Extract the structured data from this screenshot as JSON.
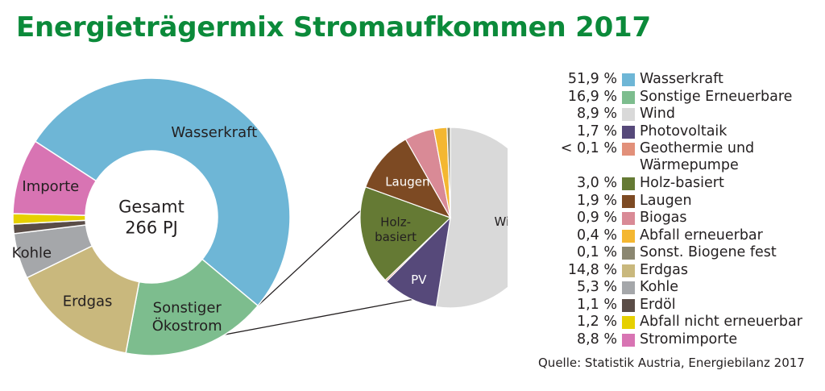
{
  "title": "Energieträgermix Stromaufkommen 2017",
  "source": "Quelle: Statistik Austria, Energiebilanz 2017",
  "chart_data": [
    {
      "type": "pie",
      "subtype": "donut",
      "center_label": [
        "Gesamt",
        "266 PJ"
      ],
      "segments": [
        {
          "name": "Wasserkraft",
          "label": "Wasserkraft",
          "value": 51.9,
          "color": "#6eb6d6"
        },
        {
          "name": "Sonstiger Ökostrom",
          "label": [
            "Sonstiger",
            "Ökostrom"
          ],
          "value": 16.9,
          "color": "#7dbd8e"
        },
        {
          "name": "Erdgas",
          "label": "Erdgas",
          "value": 14.8,
          "color": "#c9b87d"
        },
        {
          "name": "Kohle",
          "label": "Kohle",
          "value": 5.3,
          "color": "#a5a7aa"
        },
        {
          "name": "Erdöl",
          "value": 1.1,
          "color": "#5a4d47"
        },
        {
          "name": "Abfall nicht erneuerbar",
          "value": 1.2,
          "color": "#e6d000"
        },
        {
          "name": "Importe",
          "label": "Importe",
          "value": 8.8,
          "color": "#d874b3"
        }
      ]
    },
    {
      "type": "pie",
      "subtype": "breakdown of Sonstiger Ökostrom",
      "segments": [
        {
          "name": "Wind",
          "label": "Wind",
          "value": 8.9,
          "color": "#d9d9d9"
        },
        {
          "name": "Photovoltaik",
          "label": "PV",
          "value": 1.7,
          "color": "#56497a"
        },
        {
          "name": "Geothermie und Wärmepumpe",
          "value": 0.05,
          "color": "#e2907a"
        },
        {
          "name": "Holz-basiert",
          "label": [
            "Holz-",
            "basiert"
          ],
          "value": 3.0,
          "color": "#657a34"
        },
        {
          "name": "Laugen",
          "label": "Laugen",
          "value": 1.9,
          "color": "#7d4a23"
        },
        {
          "name": "Biogas",
          "value": 0.9,
          "color": "#d98a96"
        },
        {
          "name": "Abfall erneuerbar",
          "value": 0.4,
          "color": "#f4b731"
        },
        {
          "name": "Sonst. Biogene fest",
          "value": 0.1,
          "color": "#8b8771"
        }
      ]
    }
  ],
  "legend": [
    {
      "value": "51,9 %",
      "label": "Wasserkraft",
      "color": "#6eb6d6"
    },
    {
      "value": "16,9 %",
      "label": "Sonstige Erneuerbare",
      "color": "#7dbd8e"
    },
    {
      "value": "8,9 %",
      "label": "Wind",
      "color": "#d9d9d9"
    },
    {
      "value": "1,7 %",
      "label": "Photovoltaik",
      "color": "#56497a"
    },
    {
      "value": "< 0,1 %",
      "label": "Geothermie und Wärmepumpe",
      "color": "#e2907a"
    },
    {
      "value": "3,0 %",
      "label": "Holz-basiert",
      "color": "#657a34"
    },
    {
      "value": "1,9 %",
      "label": "Laugen",
      "color": "#7d4a23"
    },
    {
      "value": "0,9 %",
      "label": "Biogas",
      "color": "#d98a96"
    },
    {
      "value": "0,4 %",
      "label": "Abfall erneuerbar",
      "color": "#f4b731"
    },
    {
      "value": "0,1 %",
      "label": "Sonst. Biogene fest",
      "color": "#8b8771"
    },
    {
      "value": "14,8 %",
      "label": "Erdgas",
      "color": "#c9b87d"
    },
    {
      "value": "5,3 %",
      "label": "Kohle",
      "color": "#a5a7aa"
    },
    {
      "value": "1,1 %",
      "label": "Erdöl",
      "color": "#5a4d47"
    },
    {
      "value": "1,2 %",
      "label": "Abfall nicht erneuerbar",
      "color": "#e6d000"
    },
    {
      "value": "8,8 %",
      "label": "Stromimporte",
      "color": "#d874b3"
    }
  ]
}
